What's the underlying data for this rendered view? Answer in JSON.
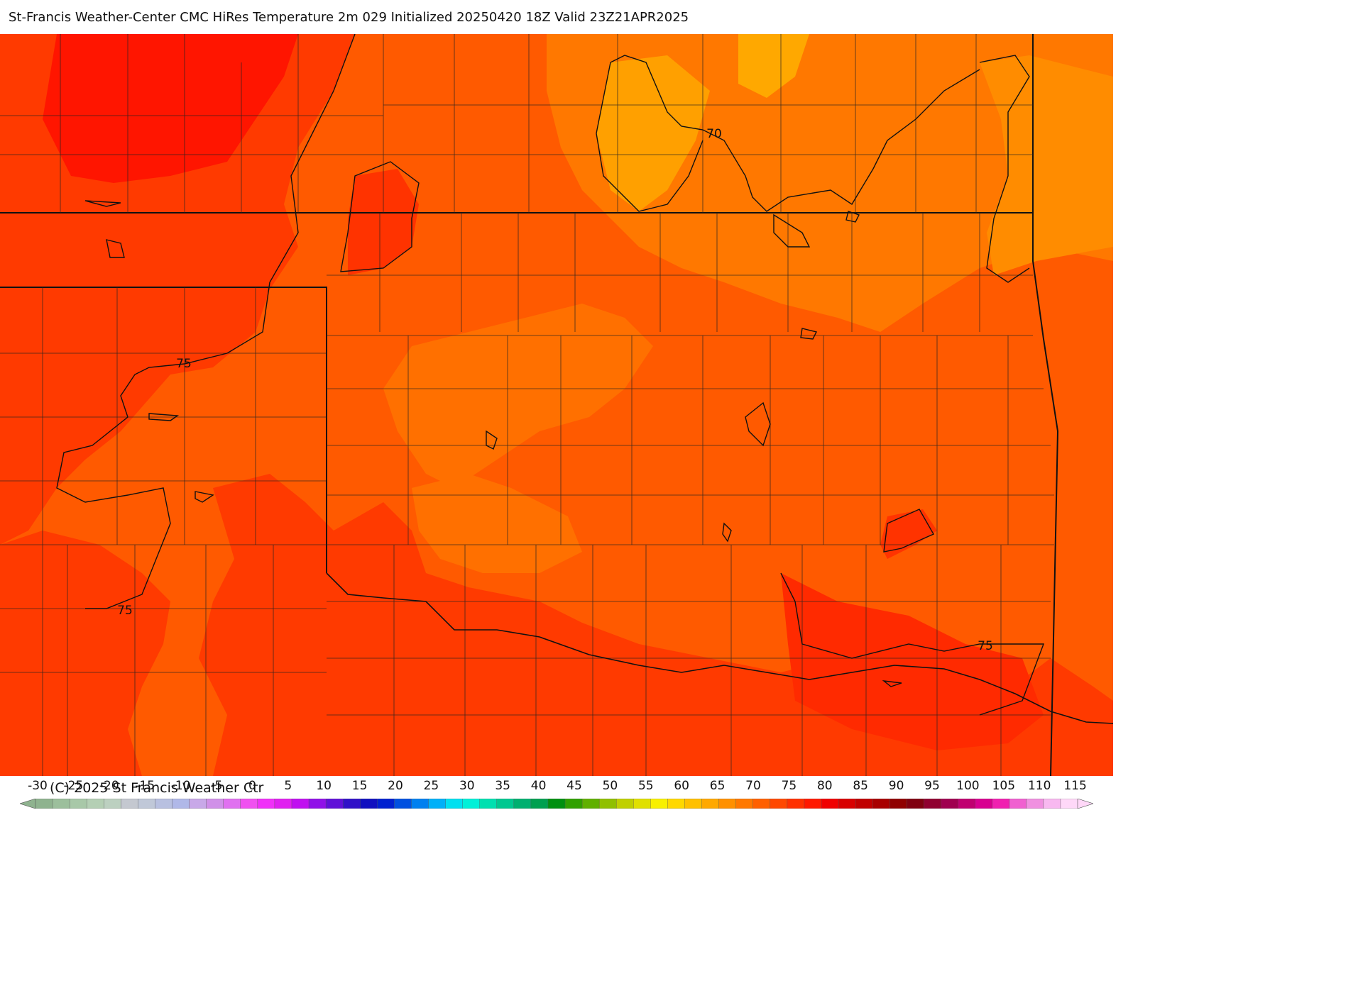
{
  "title": "St-Francis Weather-Center CMC HiRes Temperature 2m  029 Initialized 20250420 18Z Valid 23Z21APR2025",
  "copyright": "(C) 2025 St Francis Weather Ctr",
  "contour_labels": [
    "70",
    "75",
    "75",
    "75"
  ],
  "colorbar": {
    "ticks": [
      "-30",
      "-25",
      "-20",
      "-15",
      "-10",
      "-5",
      "0",
      "5",
      "10",
      "15",
      "20",
      "25",
      "30",
      "35",
      "40",
      "45",
      "50",
      "55",
      "60",
      "65",
      "70",
      "75",
      "80",
      "85",
      "90",
      "95",
      "100",
      "105",
      "110",
      "115"
    ],
    "colors": [
      "#8fb38f",
      "#9cbf9c",
      "#a8c8a8",
      "#b4cfb4",
      "#bcd0c0",
      "#c4c8d0",
      "#c0c8d8",
      "#b8c0e0",
      "#b0b8e8",
      "#c8a8e8",
      "#d090e8",
      "#e070f0",
      "#f050f0",
      "#f030f8",
      "#e020f0",
      "#c010f0",
      "#9010e8",
      "#6010d8",
      "#3010c8",
      "#1010c0",
      "#0020d0",
      "#0050e0",
      "#0080f0",
      "#00b0f8",
      "#00e0f0",
      "#00f0d8",
      "#00e0b0",
      "#00c890",
      "#00b070",
      "#00a050",
      "#009010",
      "#30a000",
      "#60b000",
      "#90c000",
      "#c0d000",
      "#e0e000",
      "#f8f000",
      "#ffd800",
      "#ffc000",
      "#ffa800",
      "#ff9000",
      "#ff7800",
      "#ff6000",
      "#ff4800",
      "#ff3000",
      "#ff1800",
      "#f00000",
      "#d80000",
      "#c00000",
      "#a80000",
      "#900000",
      "#800010",
      "#900030",
      "#a00050",
      "#c00070",
      "#d80090",
      "#f020b0",
      "#f060d0",
      "#f090e0",
      "#f8b8f0",
      "#ffd8f8"
    ]
  }
}
